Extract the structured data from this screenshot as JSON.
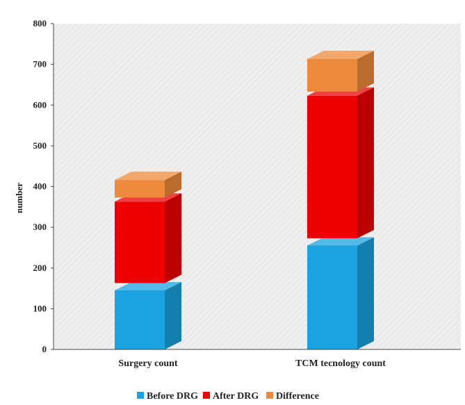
{
  "chart_data": {
    "type": "bar",
    "stacked": true,
    "style": "3d",
    "categories": [
      "Surgery count",
      "TCM tecnology count"
    ],
    "series": [
      {
        "name": "Before DRG",
        "values": [
          145,
          255
        ]
      },
      {
        "name": "After DRG",
        "values": [
          200,
          350
        ]
      },
      {
        "name": "Difference",
        "values": [
          43,
          80
        ]
      }
    ],
    "title": "",
    "xlabel": "",
    "ylabel": "number",
    "ylim": [
      0,
      800
    ],
    "yticks": [
      "0",
      "100",
      "200",
      "300",
      "400",
      "500",
      "600",
      "700",
      "800"
    ],
    "grid": false,
    "legend_position": "bottom"
  },
  "colors": {
    "before": "#1aa3e0",
    "after": "#ee0000",
    "difference": "#ee8a3c",
    "plot_background": "#ededed"
  }
}
